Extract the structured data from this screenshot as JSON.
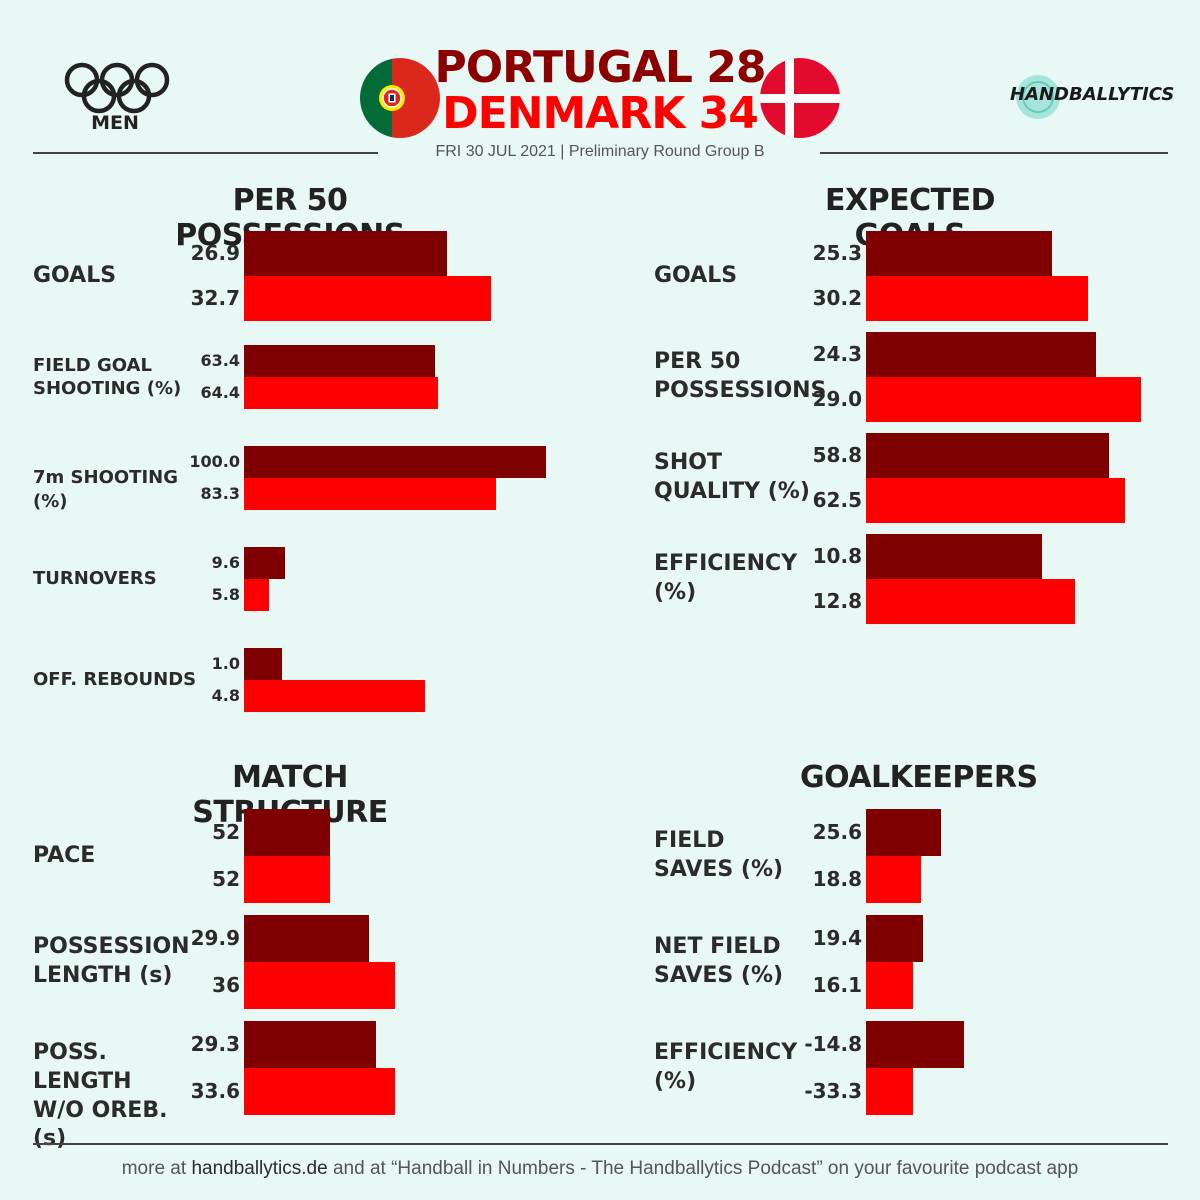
{
  "header": {
    "olympics_label": "MEN",
    "home_line": "PORTUGAL 28",
    "away_line": "DENMARK 34",
    "subtitle": "FRI 30 JUL 2021 | Preliminary Round Group B",
    "brand": "HANDBALLYTICS"
  },
  "colors": {
    "portugal_bar": "#7f0000",
    "denmark_bar": "#ff0000",
    "home_title": "#8b0000",
    "away_title": "#ff0000",
    "background": "#e8f8f4"
  },
  "footer": {
    "pre": "more at ",
    "site": "handballytics.de",
    "mid": " and at “Handball in Numbers - The Handballytics Podcast” on your favourite podcast app"
  },
  "chart_data": [
    {
      "type": "bar",
      "title": "PER 50 POSSESSIONS",
      "series_names": [
        "Portugal",
        "Denmark"
      ],
      "rows": [
        {
          "label": "GOALS",
          "values": [
            26.9,
            32.7
          ],
          "display": [
            "26.9",
            "32.7"
          ],
          "scale_max": 40
        },
        {
          "label": "FIELD GOAL\nSHOOTING (%)",
          "values": [
            63.4,
            64.4
          ],
          "display": [
            "63.4",
            "64.4"
          ],
          "scale_max": 100
        },
        {
          "label": "7m SHOOTING (%)",
          "values": [
            100.0,
            83.3
          ],
          "display": [
            "100.0",
            "83.3"
          ],
          "scale_max": 100
        },
        {
          "label": "TURNOVERS",
          "values": [
            9.6,
            5.8
          ],
          "display": [
            "9.6",
            "5.8"
          ],
          "scale_max": 70
        },
        {
          "label": "OFF. REBOUNDS",
          "values": [
            1.0,
            4.8
          ],
          "display": [
            "1.0",
            "4.8"
          ],
          "scale_max": 8
        }
      ]
    },
    {
      "type": "bar",
      "title": "EXPECTED GOALS",
      "series_names": [
        "Portugal",
        "Denmark"
      ],
      "rows": [
        {
          "label": "GOALS",
          "values": [
            25.3,
            30.2
          ],
          "display": [
            "25.3",
            "30.2"
          ],
          "scale_max": 40
        },
        {
          "label": "PER 50\nPOSSESSIONS",
          "values": [
            24.3,
            29.0
          ],
          "display": [
            "24.3",
            "29.0"
          ],
          "scale_max": 31
        },
        {
          "label": "SHOT\nQUALITY (%)",
          "values": [
            58.8,
            62.5
          ],
          "display": [
            "58.8",
            "62.5"
          ],
          "scale_max": 71
        },
        {
          "label": "EFFICIENCY\n(%)",
          "values": [
            10.8,
            12.8
          ],
          "display": [
            "10.8",
            "12.8"
          ],
          "scale_max": 18
        }
      ]
    },
    {
      "type": "bar",
      "title": "MATCH STRUCTURE",
      "series_names": [
        "Portugal",
        "Denmark"
      ],
      "rows": [
        {
          "label": "PACE",
          "values": [
            52,
            52
          ],
          "display": [
            "52",
            "52"
          ],
          "scale_max": 183
        },
        {
          "label": "POSSESSION\nLENGTH (s)",
          "values": [
            29.9,
            36
          ],
          "display": [
            "29.9",
            "36"
          ],
          "scale_max": 72
        },
        {
          "label": "POSS. LENGTH\nW/O OREB. (s)",
          "values": [
            29.3,
            33.6
          ],
          "display": [
            "29.3",
            "33.6"
          ],
          "scale_max": 67
        }
      ]
    },
    {
      "type": "bar",
      "title": "GOALKEEPERS",
      "series_names": [
        "Portugal",
        "Denmark"
      ],
      "rows": [
        {
          "label": "FIELD\nSAVES (%)",
          "values": [
            25.6,
            18.8
          ],
          "display": [
            "25.6",
            "18.8"
          ],
          "scale_max": 100
        },
        {
          "label": "NET FIELD\nSAVES (%)",
          "values": [
            19.4,
            16.1
          ],
          "display": [
            "19.4",
            "16.1"
          ],
          "scale_max": 100
        },
        {
          "label": "EFFICIENCY\n(%)",
          "values": [
            -14.8,
            -33.3
          ],
          "display": [
            "-14.8",
            "-33.3"
          ],
          "scale_max": 100,
          "note": "bars drawn from a baseline offset for negative values"
        }
      ]
    }
  ]
}
